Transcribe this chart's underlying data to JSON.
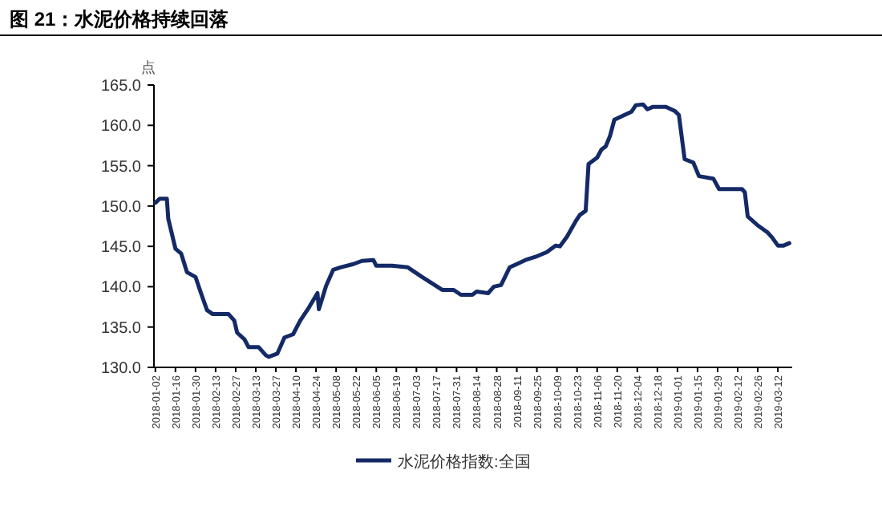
{
  "chart_data": {
    "type": "line",
    "title": "图 21：水泥价格持续回落",
    "ylabel": "点",
    "x": [
      "2018-01-02",
      "2018-01-05",
      "2018-01-10",
      "2018-01-11",
      "2018-01-16",
      "2018-01-20",
      "2018-01-24",
      "2018-01-30",
      "2018-02-03",
      "2018-02-07",
      "2018-02-11",
      "2018-02-22",
      "2018-02-26",
      "2018-02-28",
      "2018-03-05",
      "2018-03-08",
      "2018-03-15",
      "2018-03-20",
      "2018-03-22",
      "2018-03-28",
      "2018-04-02",
      "2018-04-08",
      "2018-04-13",
      "2018-04-19",
      "2018-04-25",
      "2018-04-26",
      "2018-05-01",
      "2018-05-06",
      "2018-05-11",
      "2018-05-20",
      "2018-05-26",
      "2018-06-03",
      "2018-06-05",
      "2018-06-16",
      "2018-06-27",
      "2018-07-07",
      "2018-07-14",
      "2018-07-21",
      "2018-07-29",
      "2018-08-03",
      "2018-08-11",
      "2018-08-14",
      "2018-08-22",
      "2018-08-26",
      "2018-08-31",
      "2018-09-06",
      "2018-09-11",
      "2018-09-17",
      "2018-09-24",
      "2018-10-02",
      "2018-10-08",
      "2018-10-11",
      "2018-10-16",
      "2018-10-22",
      "2018-10-25",
      "2018-10-29",
      "2018-10-31",
      "2018-11-06",
      "2018-11-09",
      "2018-11-12",
      "2018-11-15",
      "2018-11-18",
      "2018-11-24",
      "2018-11-30",
      "2018-12-03",
      "2018-12-08",
      "2018-12-11",
      "2018-12-15",
      "2018-12-24",
      "2018-12-30",
      "2019-01-02",
      "2019-01-06",
      "2019-01-12",
      "2019-01-16",
      "2019-01-26",
      "2019-01-30",
      "2019-02-15",
      "2019-02-17",
      "2019-02-19",
      "2019-02-26",
      "2019-03-05",
      "2019-03-08",
      "2019-03-12",
      "2019-03-16",
      "2019-03-20"
    ],
    "series": [
      {
        "name": "水泥价格指数:全国",
        "color": "#142a66",
        "values": [
          150.4,
          150.9,
          150.9,
          148.4,
          144.7,
          144.1,
          141.8,
          141.2,
          139.1,
          137.1,
          136.6,
          136.6,
          135.8,
          134.3,
          133.5,
          132.5,
          132.5,
          131.5,
          131.3,
          131.7,
          133.7,
          134.1,
          135.8,
          137.4,
          139.2,
          137.2,
          140.1,
          142.1,
          142.4,
          142.8,
          143.2,
          143.3,
          142.6,
          142.6,
          142.4,
          141.2,
          140.4,
          139.6,
          139.6,
          139.0,
          139.0,
          139.4,
          139.2,
          140.0,
          140.2,
          142.4,
          142.8,
          143.3,
          143.7,
          144.3,
          145.1,
          145.0,
          146.2,
          148.1,
          148.9,
          149.4,
          155.2,
          156.0,
          157.0,
          157.4,
          158.7,
          160.7,
          161.2,
          161.7,
          162.5,
          162.6,
          162.0,
          162.3,
          162.3,
          161.8,
          161.3,
          155.8,
          155.4,
          153.7,
          153.4,
          152.1,
          152.1,
          151.7,
          148.7,
          147.6,
          146.7,
          146.1,
          145.1,
          145.1,
          145.4
        ]
      }
    ],
    "xlim": [
      "2018-01-01",
      "2019-03-22"
    ],
    "xticks": [
      "2018-01-02",
      "2018-01-16",
      "2018-01-30",
      "2018-02-13",
      "2018-02-27",
      "2018-03-13",
      "2018-03-27",
      "2018-04-10",
      "2018-04-24",
      "2018-05-08",
      "2018-05-22",
      "2018-06-05",
      "2018-06-19",
      "2018-07-03",
      "2018-07-17",
      "2018-07-31",
      "2018-08-14",
      "2018-08-28",
      "2018-09-11",
      "2018-09-25",
      "2018-10-09",
      "2018-10-23",
      "2018-11-06",
      "2018-11-20",
      "2018-12-04",
      "2018-12-18",
      "2019-01-01",
      "2019-01-15",
      "2019-01-29",
      "2019-02-12",
      "2019-02-26",
      "2019-03-12"
    ],
    "ylim": [
      130,
      165
    ],
    "yticks": [
      {
        "value": 130,
        "label": "130.0"
      },
      {
        "value": 135,
        "label": "135.0"
      },
      {
        "value": 140,
        "label": "140.0"
      },
      {
        "value": 145,
        "label": "145.0"
      },
      {
        "value": 150,
        "label": "150.0"
      },
      {
        "value": 155,
        "label": "155.0"
      },
      {
        "value": 160,
        "label": "160.0"
      },
      {
        "value": 165,
        "label": "165.0"
      }
    ],
    "grid": false,
    "legend": "bottom",
    "marker": "none",
    "line_style": "solid"
  }
}
